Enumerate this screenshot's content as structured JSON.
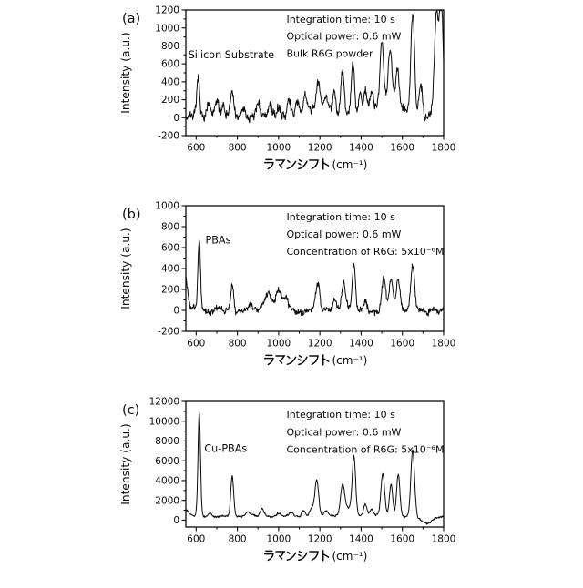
{
  "figure": {
    "background": "#ffffff",
    "line_color": "#0a0a0a"
  },
  "chart_data": [
    {
      "panel_letter": "(a)",
      "type": "line",
      "title": "",
      "xlabel": "ラマンシフト(cm⁻¹)",
      "ylabel": "Intensity (a.u.)",
      "xlim": [
        550,
        1800
      ],
      "ylim": [
        -200,
        1200
      ],
      "x_ticks": [
        600,
        800,
        1000,
        1200,
        1400,
        1600,
        1800
      ],
      "y_ticks": [
        -200,
        0,
        200,
        400,
        600,
        800,
        1000,
        1200
      ],
      "x_minor_step": 100,
      "y_minor_step": 100,
      "grid": false,
      "legend": "none",
      "sample_label": "Silicon Substrate",
      "sample_label_pos": [
        562,
        660
      ],
      "annotations": [
        "Integration time: 10 s",
        "Optical power: 0.6 mW",
        "Bulk R6G powder"
      ],
      "annotation_pos": [
        1038,
        1060
      ],
      "annotation_line_step": 192,
      "baseline": 15,
      "noise_amp": 58,
      "seed": 7,
      "peaks": [
        [
          610,
          420,
          6
        ],
        [
          660,
          110,
          8
        ],
        [
          700,
          150,
          7
        ],
        [
          730,
          110,
          6
        ],
        [
          775,
          255,
          7
        ],
        [
          830,
          100,
          8
        ],
        [
          900,
          140,
          8
        ],
        [
          960,
          110,
          7
        ],
        [
          1000,
          120,
          8
        ],
        [
          1050,
          140,
          9
        ],
        [
          1090,
          170,
          8
        ],
        [
          1130,
          190,
          8
        ],
        [
          1190,
          280,
          9
        ],
        [
          1200,
          80,
          60
        ],
        [
          1230,
          150,
          8
        ],
        [
          1270,
          220,
          8
        ],
        [
          1310,
          540,
          8
        ],
        [
          1360,
          660,
          8
        ],
        [
          1395,
          240,
          7
        ],
        [
          1420,
          240,
          7
        ],
        [
          1450,
          220,
          8
        ],
        [
          1500,
          690,
          9
        ],
        [
          1540,
          620,
          9
        ],
        [
          1540,
          150,
          70
        ],
        [
          1575,
          420,
          8
        ],
        [
          1650,
          1080,
          9
        ],
        [
          1690,
          320,
          8
        ],
        [
          1765,
          900,
          9
        ],
        [
          1788,
          1020,
          8
        ],
        [
          1778,
          380,
          25
        ]
      ]
    },
    {
      "panel_letter": "(b)",
      "type": "line",
      "title": "",
      "xlabel": "ラマンシフト(cm⁻¹)",
      "ylabel": "Intensity (a.u.)",
      "xlim": [
        550,
        1800
      ],
      "ylim": [
        -200,
        1000
      ],
      "x_ticks": [
        600,
        800,
        1000,
        1200,
        1400,
        1600,
        1800
      ],
      "y_ticks": [
        -200,
        0,
        200,
        400,
        600,
        800,
        1000
      ],
      "x_minor_step": 100,
      "y_minor_step": 100,
      "grid": false,
      "legend": "none",
      "sample_label": "PBAs",
      "sample_label_pos": [
        645,
        640
      ],
      "annotations": [
        "Integration time: 10 s",
        "Optical power: 0.6 mW",
        "Concentration of R6G: 5x10⁻⁶M"
      ],
      "annotation_pos": [
        1038,
        860
      ],
      "annotation_line_step": 165,
      "baseline": 5,
      "noise_amp": 34,
      "seed": 3,
      "peaks": [
        [
          548,
          330,
          10
        ],
        [
          615,
          650,
          6
        ],
        [
          775,
          242,
          7
        ],
        [
          860,
          60,
          10
        ],
        [
          950,
          120,
          15
        ],
        [
          1000,
          130,
          12
        ],
        [
          990,
          60,
          45
        ],
        [
          1035,
          90,
          10
        ],
        [
          1190,
          222,
          9
        ],
        [
          1270,
          105,
          8
        ],
        [
          1315,
          265,
          9
        ],
        [
          1365,
          450,
          8
        ],
        [
          1420,
          85,
          8
        ],
        [
          1510,
          318,
          10
        ],
        [
          1545,
          288,
          9
        ],
        [
          1580,
          275,
          9
        ],
        [
          1650,
          418,
          9
        ]
      ]
    },
    {
      "panel_letter": "(c)",
      "type": "line",
      "title": "",
      "xlabel": "ラマンシフト(cm⁻¹)",
      "ylabel": "Intensity (a.u.)",
      "xlim": [
        550,
        1800
      ],
      "ylim": [
        -700,
        12000
      ],
      "x_ticks": [
        600,
        800,
        1000,
        1200,
        1400,
        1600,
        1800
      ],
      "y_ticks": [
        0,
        2000,
        4000,
        6000,
        8000,
        10000,
        12000
      ],
      "x_minor_step": 100,
      "y_minor_step": 1000,
      "grid": false,
      "legend": "none",
      "sample_label": "Cu-PBAs",
      "sample_label_pos": [
        640,
        6900
      ],
      "annotations": [
        "Integration time: 10 s",
        "Optical power: 0.6 mW",
        "Concentration of R6G: 5x10⁻⁶M"
      ],
      "annotation_pos": [
        1038,
        10350
      ],
      "annotation_line_step": 1780,
      "baseline": 420,
      "noise_amp": 110,
      "seed": 5,
      "peaks": [
        [
          555,
          550,
          10
        ],
        [
          615,
          10500,
          6
        ],
        [
          668,
          400,
          8
        ],
        [
          775,
          4100,
          7
        ],
        [
          850,
          400,
          9
        ],
        [
          920,
          800,
          9
        ],
        [
          1000,
          300,
          10
        ],
        [
          1060,
          450,
          10
        ],
        [
          1120,
          650,
          9
        ],
        [
          1160,
          900,
          10
        ],
        [
          1185,
          3700,
          9
        ],
        [
          1230,
          550,
          9
        ],
        [
          1310,
          2900,
          10
        ],
        [
          1340,
          800,
          20
        ],
        [
          1365,
          5700,
          8
        ],
        [
          1420,
          1200,
          8
        ],
        [
          1450,
          650,
          8
        ],
        [
          1505,
          4200,
          9
        ],
        [
          1545,
          3200,
          8
        ],
        [
          1580,
          4300,
          8
        ],
        [
          1650,
          6700,
          9
        ],
        [
          1720,
          -700,
          25
        ]
      ]
    }
  ]
}
